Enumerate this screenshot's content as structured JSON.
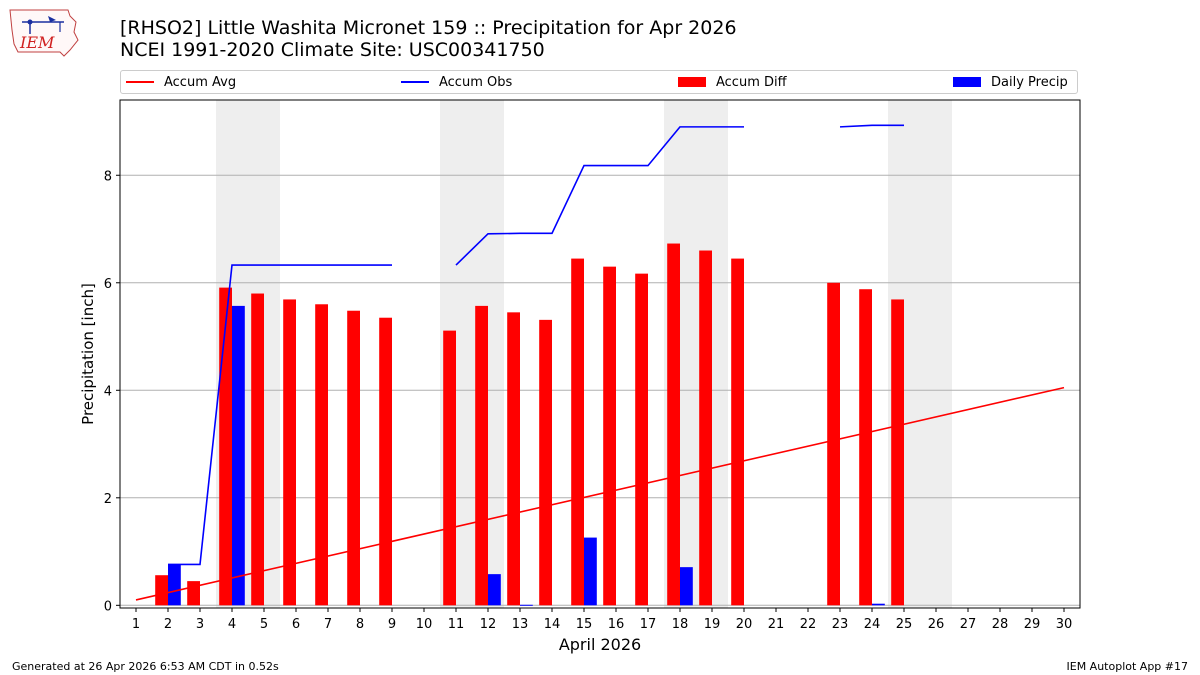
{
  "title_line1": "[RHSO2] Little Washita Micronet 159 :: Precipitation for Apr 2026",
  "title_line2": "NCEI 1991-2020 Climate Site: USC00341750",
  "logo_text": "IEM",
  "footer_left": "Generated at 26 Apr 2026 6:53 AM CDT in 0.52s",
  "footer_right": "IEM Autoplot App #17",
  "colors": {
    "avg": "#ff0000",
    "obs": "#0000ff",
    "diff": "#ff0000",
    "daily": "#0000ff",
    "weekend": "#eeeeee",
    "grid": "#b0b0b0"
  },
  "chart_data": {
    "type": "bar",
    "xlabel": "April 2026",
    "ylabel": "Precipitation [inch]",
    "xlim": [
      0.5,
      30.5
    ],
    "ylim": [
      -0.05,
      9.4
    ],
    "x_ticks": [
      1,
      2,
      3,
      4,
      5,
      6,
      7,
      8,
      9,
      10,
      11,
      12,
      13,
      14,
      15,
      16,
      17,
      18,
      19,
      20,
      21,
      22,
      23,
      24,
      25,
      26,
      27,
      28,
      29,
      30
    ],
    "y_ticks": [
      0,
      2,
      4,
      6,
      8
    ],
    "grid": "y",
    "legend_placement": "top",
    "weekend_shading": [
      4,
      5,
      11,
      12,
      18,
      19,
      25,
      26
    ],
    "series": [
      {
        "name": "Accum Avg",
        "kind": "line",
        "color": "#ff0000",
        "x": [
          1,
          30
        ],
        "y": [
          0.1,
          4.05
        ]
      },
      {
        "name": "Accum Obs",
        "kind": "line",
        "color": "#0000ff",
        "segments": [
          {
            "x": [
              2,
              3,
              4,
              5,
              6,
              7,
              8,
              9
            ],
            "y": [
              0.76,
              0.76,
              6.33,
              6.33,
              6.33,
              6.33,
              6.33,
              6.33
            ]
          },
          {
            "x": [
              11,
              12,
              13,
              14,
              15,
              16,
              17,
              18,
              19,
              20
            ],
            "y": [
              6.33,
              6.91,
              6.92,
              6.92,
              8.18,
              8.18,
              8.18,
              8.9,
              8.9,
              8.9
            ]
          },
          {
            "x": [
              23,
              24,
              25
            ],
            "y": [
              8.9,
              8.93,
              8.93
            ]
          }
        ]
      },
      {
        "name": "Accum Diff",
        "kind": "bar",
        "color": "#ff0000",
        "x": [
          2,
          3,
          4,
          5,
          6,
          7,
          8,
          9,
          11,
          12,
          13,
          14,
          15,
          16,
          17,
          18,
          19,
          20,
          23,
          24,
          25
        ],
        "values": [
          0.56,
          0.45,
          5.91,
          5.8,
          5.69,
          5.6,
          5.48,
          5.35,
          5.11,
          5.57,
          5.45,
          5.31,
          6.45,
          6.3,
          6.17,
          6.73,
          6.6,
          6.45,
          6.0,
          5.88,
          5.69
        ]
      },
      {
        "name": "Daily Precip",
        "kind": "bar",
        "color": "#0000ff",
        "x": [
          2,
          4,
          12,
          13,
          15,
          18,
          24
        ],
        "values": [
          0.76,
          5.57,
          0.58,
          0.01,
          1.26,
          0.71,
          0.03
        ]
      }
    ]
  }
}
